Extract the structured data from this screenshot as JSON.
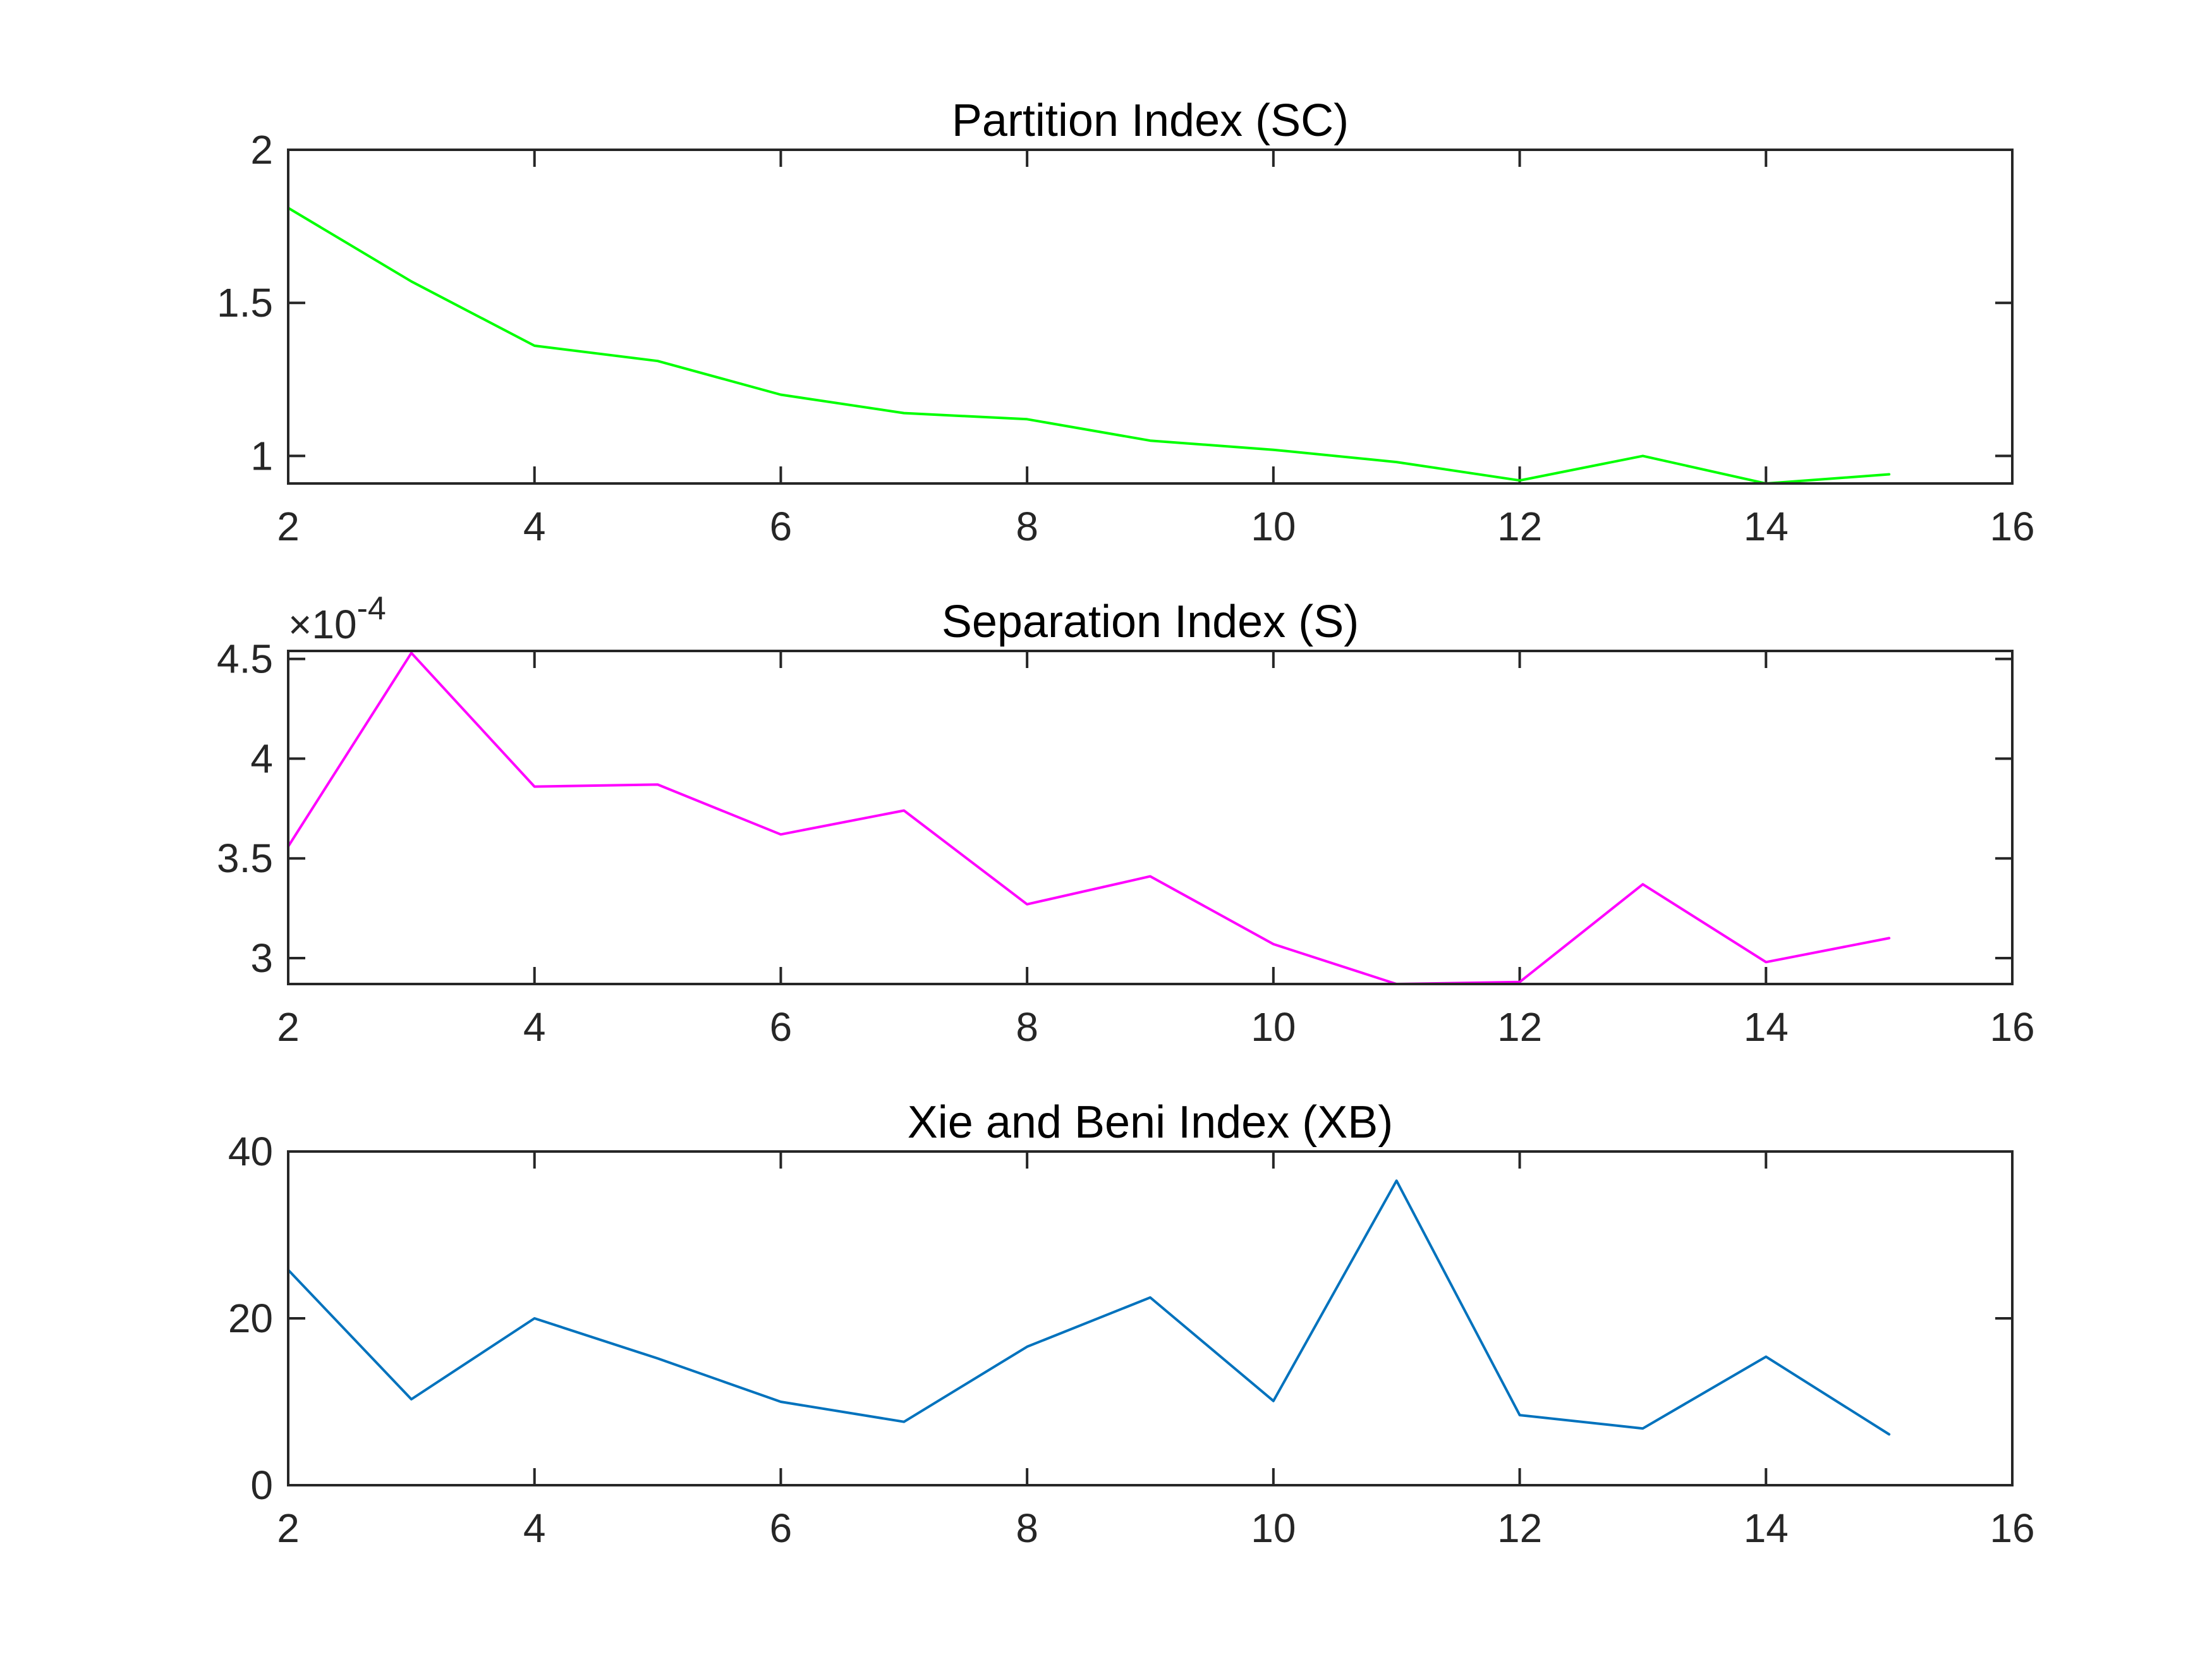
{
  "chart_data": [
    {
      "type": "line",
      "title": "Partition Index (SC)",
      "x": [
        2,
        3,
        4,
        5,
        6,
        7,
        8,
        9,
        10,
        11,
        12,
        13,
        14,
        15
      ],
      "series": [
        {
          "values": [
            1.81,
            1.57,
            1.36,
            1.31,
            1.2,
            1.14,
            1.12,
            1.05,
            1.02,
            0.98,
            0.92,
            1.0,
            0.91,
            0.94
          ],
          "color": "#00ff00"
        }
      ],
      "xlim": [
        2,
        16
      ],
      "ylim": [
        0.91,
        2
      ],
      "xticks": [
        2,
        4,
        6,
        8,
        10,
        12,
        14,
        16
      ],
      "yticks": [
        1,
        1.5,
        2
      ],
      "xtick_labels": [
        "2",
        "4",
        "6",
        "8",
        "10",
        "12",
        "14",
        "16"
      ],
      "ytick_labels": [
        "1",
        "1.5",
        "2"
      ],
      "exponent_label": "",
      "grid": false
    },
    {
      "type": "line",
      "title": "Separation Index (S)",
      "x": [
        2,
        3,
        4,
        5,
        6,
        7,
        8,
        9,
        10,
        11,
        12,
        13,
        14,
        15
      ],
      "series": [
        {
          "values": [
            3.56,
            4.53,
            3.86,
            3.87,
            3.62,
            3.74,
            3.27,
            3.41,
            3.07,
            2.87,
            2.88,
            3.37,
            2.98,
            3.1
          ],
          "color": "#ff00ff"
        }
      ],
      "xlim": [
        2,
        16
      ],
      "ylim": [
        2.87,
        4.54
      ],
      "xticks": [
        2,
        4,
        6,
        8,
        10,
        12,
        14,
        16
      ],
      "yticks": [
        3,
        3.5,
        4,
        4.5
      ],
      "xtick_labels": [
        "2",
        "4",
        "6",
        "8",
        "10",
        "12",
        "14",
        "16"
      ],
      "ytick_labels": [
        "3",
        "3.5",
        "4",
        "4.5"
      ],
      "exponent_label": "×10",
      "exponent_power": "-4",
      "grid": false
    },
    {
      "type": "line",
      "title": "Xie and Beni Index (XB)",
      "x": [
        2,
        3,
        4,
        5,
        6,
        7,
        8,
        9,
        10,
        11,
        12,
        13,
        14,
        15
      ],
      "series": [
        {
          "values": [
            25.8,
            10.3,
            20.0,
            15.2,
            10.0,
            7.6,
            16.6,
            22.5,
            10.1,
            36.5,
            8.4,
            6.8,
            15.4,
            6.1
          ],
          "color": "#0072bd"
        }
      ],
      "xlim": [
        2,
        16
      ],
      "ylim": [
        0,
        40
      ],
      "xticks": [
        2,
        4,
        6,
        8,
        10,
        12,
        14,
        16
      ],
      "yticks": [
        0,
        20,
        40
      ],
      "xtick_labels": [
        "2",
        "4",
        "6",
        "8",
        "10",
        "12",
        "14",
        "16"
      ],
      "ytick_labels": [
        "0",
        "20",
        "40"
      ],
      "exponent_label": "",
      "grid": false
    }
  ]
}
